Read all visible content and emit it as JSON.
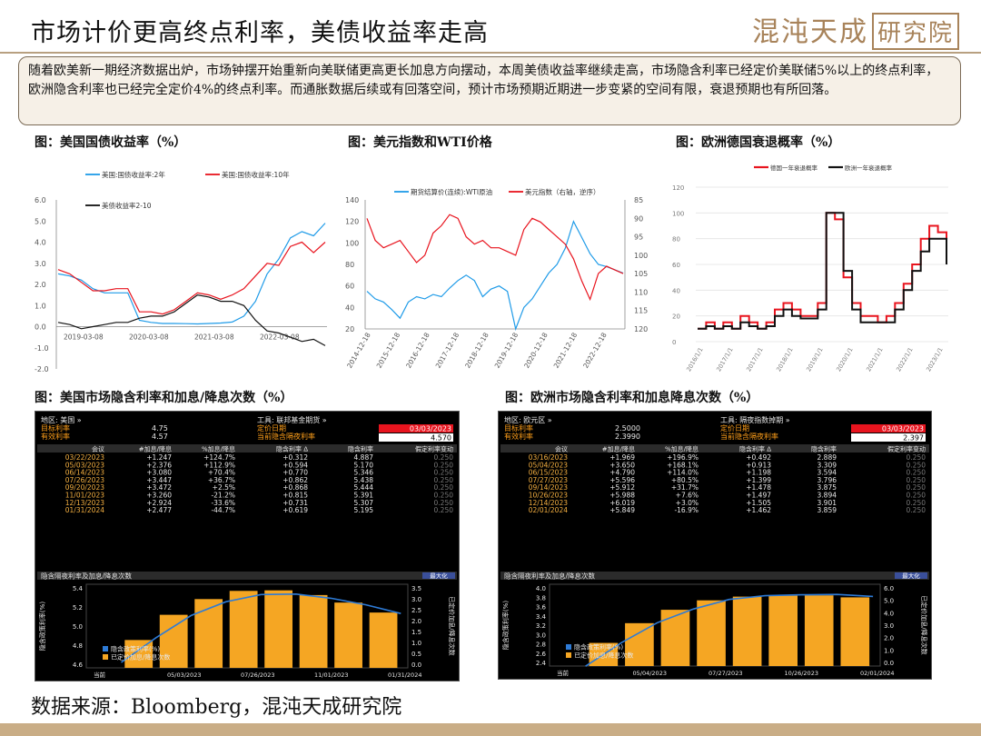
{
  "header": {
    "title": "市场计价更高终点利率，美债收益率走高",
    "logo_main": "混沌天成",
    "logo_box": "研究院"
  },
  "summary": "随着欧美新一期经济数据出炉，市场钟摆开始重新向美联储更高更长加息方向摆动，本周美债收益率继续走高，市场隐含利率已经定价美联储5%以上的终点利率，欧洲隐含利率也已经完全定价4%的终点利率。而通胀数据后续或有回落空间，预计市场预期近期进一步变紧的空间有限，衰退预期也有所回落。",
  "captions": {
    "c1": "图：美国国债收益率（%）",
    "c2": "图：美元指数和WTI价格",
    "c3": "图：欧洲德国衰退概率（%）",
    "c4": "图：美国市场隐含利率和加息/降息次数（%）",
    "c5": "图：欧洲市场隐含利率和加息降息次数（%）"
  },
  "source": "数据来源：Bloomberg，混沌天成研究院",
  "colors": {
    "blue": "#1f9be8",
    "red": "#e8141e",
    "black": "#111111",
    "orange": "#f5a623",
    "terminal_bg": "#000000",
    "accent": "#a8835a"
  },
  "chart_data": [
    {
      "id": "us-yields",
      "type": "line",
      "title": "",
      "x_ticks": [
        "2019-03-08",
        "2020-03-08",
        "2021-03-08",
        "2022-03-08"
      ],
      "y_ticks": [
        "6.0",
        "5.0",
        "4.0",
        "3.0",
        "2.0",
        "1.0",
        "0.0",
        "-1.0",
        "-2.0"
      ],
      "ylim": [
        -2.0,
        6.0
      ],
      "legend": [
        "美国:国债收益率:2年",
        "美国:国债收益率:10年",
        "美债收益率2-10"
      ],
      "legend_placement": "top",
      "series": [
        {
          "name": "美国:国债收益率:2年",
          "color": "#1f9be8",
          "values": [
            2.5,
            2.4,
            2.2,
            1.8,
            1.6,
            1.6,
            1.6,
            0.3,
            0.2,
            0.15,
            0.15,
            0.14,
            0.13,
            0.15,
            0.17,
            0.22,
            0.5,
            1.2,
            2.5,
            3.2,
            4.2,
            4.5,
            4.3,
            4.9
          ]
        },
        {
          "name": "美国:国债收益率:10年",
          "color": "#e8141e",
          "values": [
            2.7,
            2.5,
            2.1,
            1.7,
            1.7,
            1.8,
            1.8,
            0.7,
            0.7,
            0.6,
            0.8,
            1.2,
            1.6,
            1.5,
            1.3,
            1.5,
            1.8,
            2.4,
            3.0,
            2.9,
            3.8,
            4.0,
            3.5,
            4.0
          ]
        },
        {
          "name": "美债收益率2-10",
          "color": "#111111",
          "values": [
            0.2,
            0.1,
            -0.1,
            0.0,
            0.1,
            0.2,
            0.2,
            0.4,
            0.5,
            0.5,
            0.7,
            1.1,
            1.5,
            1.4,
            1.2,
            1.2,
            1.0,
            0.3,
            -0.2,
            -0.3,
            -0.5,
            -0.7,
            -0.6,
            -0.9
          ]
        }
      ]
    },
    {
      "id": "dxy-wti",
      "type": "line",
      "title": "",
      "x_ticks": [
        "2014-12-18",
        "2015-12-18",
        "2016-12-18",
        "2017-12-18",
        "2018-12-18",
        "2019-12-18",
        "2020-12-18",
        "2021-12-18",
        "2022-12-18"
      ],
      "y_left_ticks": [
        "140",
        "120",
        "100",
        "80",
        "60",
        "40",
        "20"
      ],
      "y_right_ticks": [
        "85",
        "90",
        "95",
        "100",
        "105",
        "110",
        "115",
        "120"
      ],
      "ylim_left": [
        20,
        140
      ],
      "ylim_right_inverted": [
        85,
        120
      ],
      "legend": [
        "期货结算价(连续):WTI原油",
        "美元指数（右轴，逆序）"
      ],
      "legend_placement": "top",
      "series": [
        {
          "name": "期货结算价(连续):WTI原油",
          "color": "#1f9be8",
          "axis": "left",
          "values": [
            55,
            48,
            45,
            38,
            30,
            45,
            50,
            48,
            52,
            50,
            58,
            65,
            70,
            65,
            50,
            57,
            60,
            55,
            20,
            40,
            48,
            60,
            72,
            80,
            95,
            120,
            105,
            90,
            80,
            78,
            75,
            72
          ]
        },
        {
          "name": "美元指数（右轴，逆序）",
          "color": "#e8141e",
          "axis": "right",
          "values": [
            90,
            96,
            98,
            97,
            96,
            99,
            102,
            100,
            94,
            92,
            89,
            90,
            95,
            97,
            96,
            98,
            98,
            99,
            100,
            93,
            90,
            91,
            93,
            95,
            97,
            101,
            107,
            112,
            105,
            103,
            104,
            105
          ]
        }
      ]
    },
    {
      "id": "eu-recession",
      "type": "line",
      "title": "",
      "x_ticks": [
        "2016/1/1",
        "2017/1/1",
        "2017/1/1",
        "2018/1/1",
        "2019/1/1",
        "2020/1/1",
        "2021/1/1",
        "2022/1/1",
        "2023/1/1"
      ],
      "y_ticks": [
        "120",
        "100",
        "80",
        "60",
        "40",
        "20",
        "0"
      ],
      "ylim": [
        0,
        120
      ],
      "legend": [
        "德国一年衰退概率",
        "欧洲一年衰退概率"
      ],
      "legend_placement": "top-right",
      "series": [
        {
          "name": "德国一年衰退概率",
          "color": "#e8141e",
          "values": [
            10,
            15,
            10,
            15,
            10,
            20,
            15,
            10,
            15,
            25,
            30,
            25,
            20,
            20,
            30,
            100,
            95,
            50,
            30,
            20,
            20,
            15,
            20,
            30,
            45,
            60,
            80,
            90,
            85,
            70
          ]
        },
        {
          "name": "欧洲一年衰退概率",
          "color": "#111111",
          "values": [
            10,
            12,
            10,
            12,
            10,
            15,
            12,
            10,
            12,
            20,
            25,
            20,
            18,
            18,
            25,
            100,
            100,
            55,
            25,
            15,
            15,
            15,
            15,
            25,
            40,
            55,
            70,
            80,
            80,
            60
          ]
        }
      ]
    },
    {
      "id": "us-implied",
      "type": "table",
      "header": {
        "region_label": "地区: 美国 »",
        "tool_label": "工具: 联邦基金期货 »",
        "target_label": "目标利率",
        "target_value": "4.75",
        "effective_label": "有效利率",
        "effective_value": "4.57",
        "pricing_date_label": "定价日期",
        "pricing_date": "03/03/2023",
        "overnight_label": "当前隐含隔夜利率",
        "overnight_value": "4.570"
      },
      "columns": [
        "会议",
        "#加息/降息",
        "%加息/降息",
        "隐含利率 Δ",
        "隐含利率",
        "假定利率变动"
      ],
      "rows": [
        [
          "03/22/2023",
          "+1.247",
          "+124.7%",
          "+0.312",
          "4.887",
          "0.250"
        ],
        [
          "05/03/2023",
          "+2.376",
          "+112.9%",
          "+0.594",
          "5.170",
          "0.250"
        ],
        [
          "06/14/2023",
          "+3.080",
          "+70.4%",
          "+0.770",
          "5.346",
          "0.250"
        ],
        [
          "07/26/2023",
          "+3.447",
          "+36.7%",
          "+0.862",
          "5.438",
          "0.250"
        ],
        [
          "09/20/2023",
          "+3.472",
          "+2.5%",
          "+0.868",
          "5.444",
          "0.250"
        ],
        [
          "11/01/2023",
          "+3.260",
          "-21.2%",
          "+0.815",
          "5.391",
          "0.250"
        ],
        [
          "12/13/2023",
          "+2.924",
          "-33.6%",
          "+0.731",
          "5.307",
          "0.250"
        ],
        [
          "01/31/2024",
          "+2.477",
          "-44.7%",
          "+0.619",
          "5.195",
          "0.250"
        ]
      ],
      "subchart": {
        "title": "隐含隔夜利率及加息/降息次数",
        "max_label": "最大化",
        "left_axis_label": "隐含政策利率(%)",
        "right_axis_label": "已定价加息/降息次数",
        "left_ticks": [
          "5.4",
          "5.2",
          "5.0",
          "4.8",
          "4.6"
        ],
        "right_ticks": [
          "3.5",
          "3.0",
          "2.5",
          "2.0",
          "1.5",
          "1.0",
          "0.5",
          "0.0"
        ],
        "x_ticks": [
          "当前",
          "05/03/2023",
          "07/26/2023",
          "11/01/2023",
          "01/31/2024"
        ],
        "legend": [
          "隐含政策利率(%)",
          "已定价加息/降息次数"
        ],
        "bars": [
          1.247,
          2.376,
          3.08,
          3.447,
          3.472,
          3.26,
          2.924,
          2.477
        ],
        "bar_max": 3.5,
        "line": [
          4.57,
          4.887,
          5.17,
          5.346,
          5.438,
          5.444,
          5.391,
          5.307,
          5.195
        ],
        "line_range": [
          4.5,
          5.5
        ]
      }
    },
    {
      "id": "eu-implied",
      "type": "table",
      "header": {
        "region_label": "地区: 欧元区 »",
        "tool_label": "工具: 隔夜指数掉期 »",
        "target_label": "目标利率",
        "target_value": "2.5000",
        "effective_label": "有效利率",
        "effective_value": "2.3990",
        "pricing_date_label": "定价日期",
        "pricing_date": "03/03/2023",
        "overnight_label": "当前隐含隔夜利率",
        "overnight_value": "2.397"
      },
      "columns": [
        "会议",
        "#加息/降息",
        "%加息/降息",
        "隐含利率 Δ",
        "隐含利率",
        "假定利率变动"
      ],
      "rows": [
        [
          "03/16/2023",
          "+1.969",
          "+196.9%",
          "+0.492",
          "2.889",
          "0.250"
        ],
        [
          "05/04/2023",
          "+3.650",
          "+168.1%",
          "+0.913",
          "3.309",
          "0.250"
        ],
        [
          "06/15/2023",
          "+4.790",
          "+114.0%",
          "+1.198",
          "3.594",
          "0.250"
        ],
        [
          "07/27/2023",
          "+5.596",
          "+80.5%",
          "+1.399",
          "3.796",
          "0.250"
        ],
        [
          "09/14/2023",
          "+5.912",
          "+31.7%",
          "+1.478",
          "3.875",
          "0.250"
        ],
        [
          "10/26/2023",
          "+5.988",
          "+7.6%",
          "+1.497",
          "3.894",
          "0.250"
        ],
        [
          "12/14/2023",
          "+6.019",
          "+3.0%",
          "+1.505",
          "3.901",
          "0.250"
        ],
        [
          "02/01/2024",
          "+5.849",
          "-16.9%",
          "+1.462",
          "3.859",
          "0.250"
        ]
      ],
      "subchart": {
        "title": "隐含隔夜利率及加息/降息次数",
        "max_label": "最大化",
        "left_axis_label": "隐含政策利率(%)",
        "right_axis_label": "已定价加息/降息次数",
        "left_ticks": [
          "4.0",
          "3.8",
          "3.6",
          "3.4",
          "3.2",
          "3.0",
          "2.8",
          "2.6",
          "2.4"
        ],
        "right_ticks": [
          "6.0",
          "5.0",
          "4.0",
          "3.0",
          "2.0",
          "1.0",
          "0.0"
        ],
        "x_ticks": [
          "当前",
          "05/04/2023",
          "07/27/2023",
          "10/26/2023",
          "02/01/2024"
        ],
        "legend": [
          "隐含政策利率(%)",
          "已定价加息/降息次数"
        ],
        "bars": [
          1.969,
          3.65,
          4.79,
          5.596,
          5.912,
          5.988,
          6.019,
          5.849
        ],
        "bar_max": 6.5,
        "line": [
          2.397,
          2.889,
          3.309,
          3.594,
          3.796,
          3.875,
          3.894,
          3.901,
          3.859
        ],
        "line_range": [
          2.4,
          4.0
        ]
      }
    }
  ]
}
